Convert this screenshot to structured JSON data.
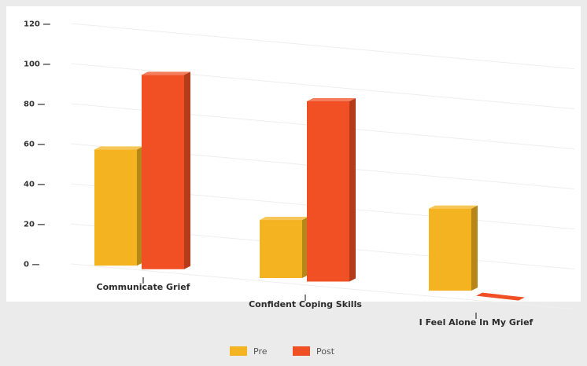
{
  "chart_data": {
    "type": "bar",
    "title": "",
    "xlabel": "",
    "ylabel": "",
    "categories": [
      "Communicate Grief",
      "Confident Coping Skills",
      "I Feel Alone In My Grief"
    ],
    "series": [
      {
        "name": "Pre",
        "values": [
          58,
          29,
          41
        ],
        "color": "#f4b320"
      },
      {
        "name": "Post",
        "values": [
          97,
          90,
          0
        ],
        "color": "#f05023"
      }
    ],
    "yticks": [
      "0",
      "20",
      "40",
      "60",
      "80",
      "100",
      "120"
    ],
    "ylim": [
      0,
      120
    ],
    "grid": true,
    "legend_position": "bottom-center",
    "style": "3d-perspective"
  }
}
